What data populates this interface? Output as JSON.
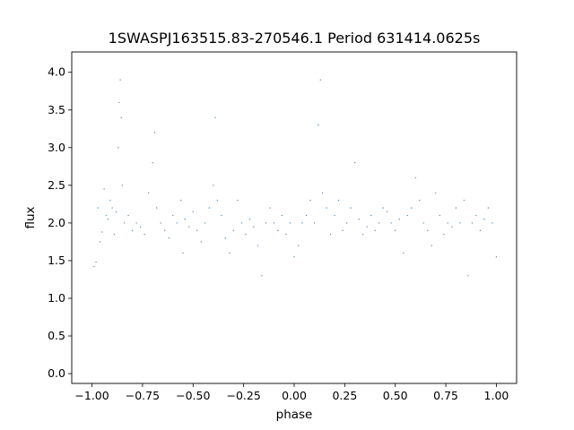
{
  "chart_data": {
    "type": "scatter",
    "title": "1SWASPJ163515.83-270546.1 Period 631414.0625s",
    "xlabel": "phase",
    "ylabel": "flux",
    "xlim": [
      -1.1,
      1.1
    ],
    "ylim": [
      -0.13,
      4.27
    ],
    "xticks": [
      -1.0,
      -0.75,
      -0.5,
      -0.25,
      0.0,
      0.25,
      0.5,
      0.75,
      1.0
    ],
    "xtick_labels": [
      "−1.00",
      "−0.75",
      "−0.50",
      "−0.25",
      "0.00",
      "0.25",
      "0.50",
      "0.75",
      "1.00"
    ],
    "yticks": [
      0.0,
      0.5,
      1.0,
      1.5,
      2.0,
      2.5,
      3.0,
      3.5,
      4.0
    ],
    "ytick_labels": [
      "0.0",
      "0.5",
      "1.0",
      "1.5",
      "2.0",
      "2.5",
      "3.0",
      "3.5",
      "4.0"
    ],
    "grid": false,
    "series": [
      {
        "color": "#1f77b4",
        "points": [
          [
            -0.99,
            1.42
          ],
          [
            -0.98,
            1.48
          ],
          [
            -0.97,
            2.2
          ],
          [
            -0.96,
            1.75
          ],
          [
            -0.95,
            1.88
          ],
          [
            -0.94,
            2.45
          ],
          [
            -0.93,
            2.1
          ],
          [
            -0.92,
            2.05
          ],
          [
            -0.91,
            2.3
          ],
          [
            -0.9,
            2.2
          ],
          [
            -0.89,
            1.85
          ],
          [
            -0.88,
            2.15
          ],
          [
            -0.87,
            3.0
          ],
          [
            -0.865,
            3.6
          ],
          [
            -0.86,
            3.9
          ],
          [
            -0.855,
            3.4
          ],
          [
            -0.85,
            2.5
          ],
          [
            -0.84,
            2.0
          ],
          [
            -0.82,
            2.1
          ],
          [
            -0.8,
            1.9
          ],
          [
            -0.78,
            2.0
          ],
          [
            -0.76,
            1.95
          ],
          [
            -0.74,
            1.85
          ],
          [
            -0.72,
            2.4
          ],
          [
            -0.7,
            2.8
          ],
          [
            -0.69,
            3.2
          ],
          [
            -0.68,
            2.2
          ],
          [
            -0.66,
            2.0
          ],
          [
            -0.64,
            1.9
          ],
          [
            -0.62,
            1.8
          ],
          [
            -0.6,
            2.1
          ],
          [
            -0.58,
            2.0
          ],
          [
            -0.56,
            2.3
          ],
          [
            -0.55,
            1.6
          ],
          [
            -0.54,
            2.05
          ],
          [
            -0.52,
            1.95
          ],
          [
            -0.5,
            2.15
          ],
          [
            -0.48,
            1.9
          ],
          [
            -0.46,
            1.75
          ],
          [
            -0.44,
            2.0
          ],
          [
            -0.42,
            2.2
          ],
          [
            -0.4,
            2.5
          ],
          [
            -0.39,
            3.4
          ],
          [
            -0.38,
            2.3
          ],
          [
            -0.36,
            2.1
          ],
          [
            -0.34,
            1.8
          ],
          [
            -0.32,
            1.6
          ],
          [
            -0.3,
            1.9
          ],
          [
            -0.28,
            2.3
          ],
          [
            -0.26,
            2.0
          ],
          [
            -0.24,
            1.85
          ],
          [
            -0.22,
            2.05
          ],
          [
            -0.2,
            1.95
          ],
          [
            -0.18,
            1.7
          ],
          [
            -0.16,
            1.3
          ],
          [
            -0.14,
            2.0
          ],
          [
            -0.12,
            2.2
          ],
          [
            -0.1,
            2.0
          ],
          [
            -0.08,
            1.9
          ],
          [
            -0.06,
            2.1
          ],
          [
            -0.04,
            1.85
          ],
          [
            -0.02,
            2.0
          ],
          [
            0.0,
            1.55
          ],
          [
            0.02,
            1.7
          ],
          [
            0.04,
            2.0
          ],
          [
            0.06,
            2.1
          ],
          [
            0.08,
            2.3
          ],
          [
            0.1,
            2.0
          ],
          [
            0.12,
            3.3
          ],
          [
            0.13,
            3.9
          ],
          [
            0.14,
            2.4
          ],
          [
            0.16,
            2.2
          ],
          [
            0.18,
            1.85
          ],
          [
            0.2,
            2.1
          ],
          [
            0.22,
            2.3
          ],
          [
            0.24,
            1.9
          ],
          [
            0.26,
            2.0
          ],
          [
            0.28,
            2.2
          ],
          [
            0.3,
            2.8
          ],
          [
            0.32,
            2.05
          ],
          [
            0.34,
            1.85
          ],
          [
            0.36,
            1.95
          ],
          [
            0.38,
            2.1
          ],
          [
            0.4,
            1.9
          ],
          [
            0.42,
            2.0
          ],
          [
            0.44,
            2.2
          ],
          [
            0.46,
            2.15
          ],
          [
            0.48,
            2.0
          ],
          [
            0.5,
            1.9
          ],
          [
            0.52,
            2.05
          ],
          [
            0.54,
            1.6
          ],
          [
            0.56,
            2.1
          ],
          [
            0.58,
            2.2
          ],
          [
            0.6,
            2.6
          ],
          [
            0.62,
            2.3
          ],
          [
            0.64,
            2.0
          ],
          [
            0.66,
            1.9
          ],
          [
            0.68,
            1.7
          ],
          [
            0.7,
            2.4
          ],
          [
            0.72,
            2.1
          ],
          [
            0.74,
            1.85
          ],
          [
            0.76,
            2.0
          ],
          [
            0.78,
            1.95
          ],
          [
            0.8,
            2.2
          ],
          [
            0.82,
            2.0
          ],
          [
            0.84,
            2.3
          ],
          [
            0.86,
            1.3
          ],
          [
            0.88,
            2.0
          ],
          [
            0.9,
            2.1
          ],
          [
            0.92,
            1.9
          ],
          [
            0.94,
            2.05
          ],
          [
            0.96,
            2.2
          ],
          [
            0.98,
            2.0
          ],
          [
            1.0,
            1.55
          ]
        ]
      }
    ]
  }
}
